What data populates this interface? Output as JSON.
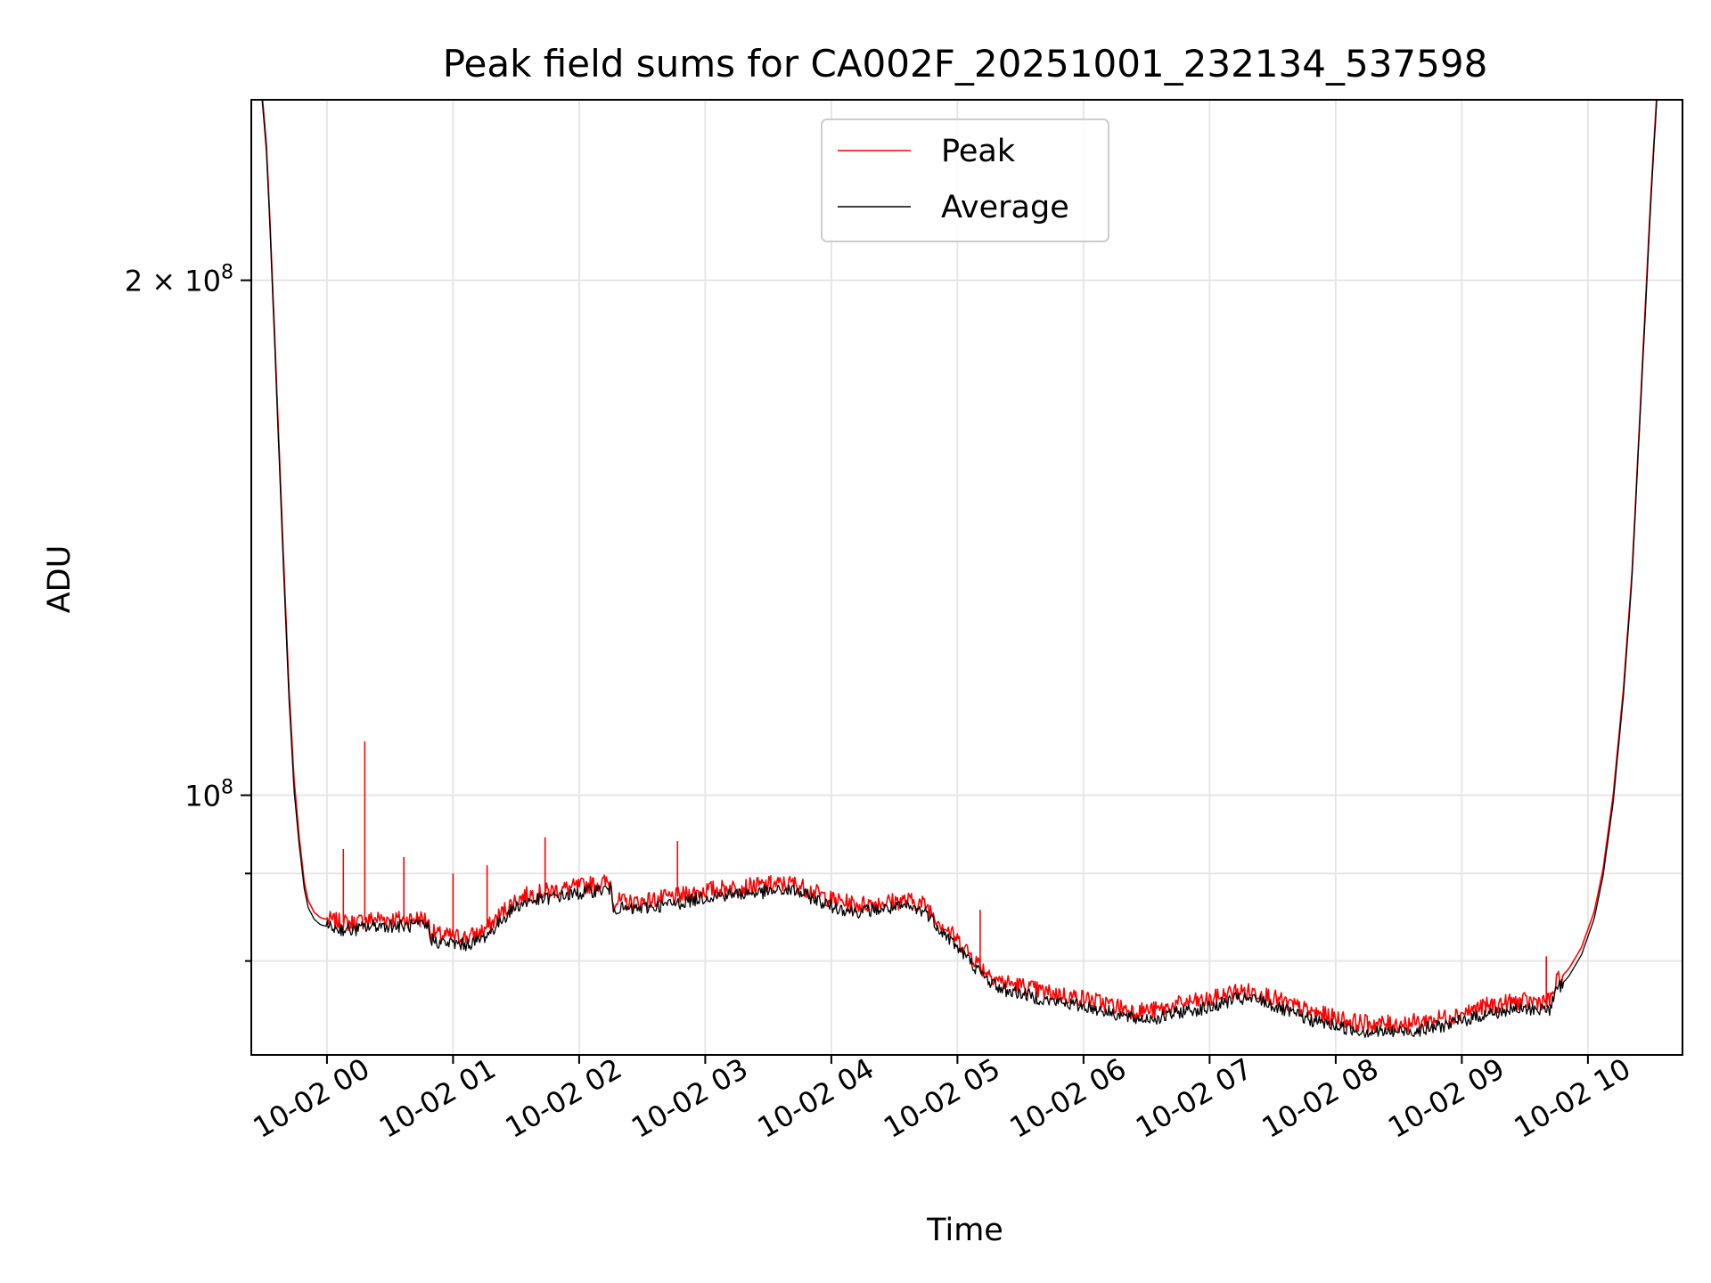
{
  "chart_data": {
    "type": "line",
    "title": "Peak field sums for CA002F_20251001_232134_537598",
    "xlabel": "Time",
    "ylabel": "ADU",
    "yscale": "log",
    "x_unit": "hours relative to 10-02 00:00",
    "xlim": [
      -0.6,
      10.75
    ],
    "ylim": [
      70500000,
      255000000
    ],
    "x_ticks": [
      {
        "value": 0,
        "label": "10-02 00"
      },
      {
        "value": 1,
        "label": "10-02 01"
      },
      {
        "value": 2,
        "label": "10-02 02"
      },
      {
        "value": 3,
        "label": "10-02 03"
      },
      {
        "value": 4,
        "label": "10-02 04"
      },
      {
        "value": 5,
        "label": "10-02 05"
      },
      {
        "value": 6,
        "label": "10-02 06"
      },
      {
        "value": 7,
        "label": "10-02 07"
      },
      {
        "value": 8,
        "label": "10-02 08"
      },
      {
        "value": 9,
        "label": "10-02 09"
      },
      {
        "value": 10,
        "label": "10-02 10"
      }
    ],
    "y_major_ticks": [
      {
        "value": 100000000,
        "base": "10",
        "exp": "8",
        "coef": ""
      },
      {
        "value": 200000000,
        "base": "10",
        "exp": "8",
        "coef": "2 × "
      }
    ],
    "y_minor_ticks": [
      80000000,
      90000000
    ],
    "grid": true,
    "legend_position": "upper center",
    "series": [
      {
        "name": "Peak",
        "color": "#ff0000",
        "x": [
          -0.52,
          -0.48,
          -0.45,
          -0.42,
          -0.38,
          -0.34,
          -0.3,
          -0.26,
          -0.22,
          -0.18,
          -0.15,
          -0.1,
          -0.05,
          0.0,
          0.1,
          0.2,
          0.3,
          0.4,
          0.5,
          0.6,
          0.7,
          0.75,
          0.8,
          0.82,
          0.9,
          1.0,
          1.1,
          1.2,
          1.3,
          1.4,
          1.5,
          1.6,
          1.7,
          1.8,
          1.9,
          2.0,
          2.1,
          2.2,
          2.25,
          2.27,
          2.4,
          2.6,
          2.8,
          3.0,
          3.2,
          3.4,
          3.6,
          3.7,
          3.8,
          4.0,
          4.2,
          4.4,
          4.6,
          4.75,
          4.85,
          5.0,
          5.1,
          5.2,
          5.35,
          5.5,
          5.7,
          5.9,
          6.0,
          6.2,
          6.4,
          6.6,
          6.8,
          7.0,
          7.2,
          7.4,
          7.6,
          7.8,
          8.0,
          8.2,
          8.4,
          8.6,
          8.8,
          9.0,
          9.2,
          9.4,
          9.6,
          9.7,
          9.75,
          9.85,
          9.95,
          10.05,
          10.12,
          10.2,
          10.28,
          10.35,
          10.4,
          10.45,
          10.5,
          10.55
        ],
        "y": [
          260000000,
          240000000,
          215000000,
          190000000,
          160000000,
          135000000,
          115000000,
          102000000,
          94500000,
          89000000,
          86800000,
          85400000,
          84800000,
          84600000,
          84300000,
          84200000,
          84500000,
          84700000,
          84700000,
          84600000,
          84700000,
          84700000,
          84600000,
          83200000,
          82800000,
          82700000,
          82600000,
          83000000,
          84000000,
          85600000,
          86900000,
          87500000,
          87700000,
          88000000,
          88200000,
          88400000,
          88700000,
          88900000,
          88900000,
          86800000,
          86500000,
          86900000,
          87300000,
          88000000,
          88300000,
          88500000,
          88700000,
          88800000,
          88200000,
          86900000,
          86300000,
          86600000,
          86800000,
          86300000,
          84500000,
          82300000,
          80800000,
          79200000,
          77800000,
          77400000,
          76700000,
          76300000,
          76100000,
          75500000,
          74800000,
          74900000,
          75600000,
          75900000,
          76800000,
          76700000,
          75600000,
          74700000,
          74100000,
          73600000,
          73500000,
          73600000,
          74000000,
          74600000,
          75300000,
          75700000,
          75800000,
          75800000,
          77700000,
          79200000,
          81500000,
          85500000,
          90500000,
          100000000,
          115000000,
          135000000,
          160000000,
          190000000,
          225000000,
          260000000
        ]
      },
      {
        "name": "Average",
        "color": "#000000",
        "x": [
          -0.52,
          -0.48,
          -0.45,
          -0.42,
          -0.38,
          -0.34,
          -0.3,
          -0.26,
          -0.22,
          -0.18,
          -0.15,
          -0.1,
          -0.05,
          0.0,
          0.1,
          0.2,
          0.3,
          0.4,
          0.5,
          0.6,
          0.7,
          0.75,
          0.8,
          0.82,
          0.9,
          1.0,
          1.1,
          1.2,
          1.3,
          1.4,
          1.5,
          1.6,
          1.7,
          1.8,
          1.9,
          2.0,
          2.1,
          2.2,
          2.25,
          2.27,
          2.4,
          2.6,
          2.8,
          3.0,
          3.2,
          3.4,
          3.6,
          3.7,
          3.8,
          4.0,
          4.2,
          4.4,
          4.6,
          4.75,
          4.85,
          5.0,
          5.1,
          5.2,
          5.35,
          5.5,
          5.7,
          5.9,
          6.0,
          6.2,
          6.4,
          6.6,
          6.8,
          7.0,
          7.2,
          7.4,
          7.6,
          7.8,
          8.0,
          8.2,
          8.4,
          8.6,
          8.8,
          9.0,
          9.2,
          9.4,
          9.6,
          9.7,
          9.75,
          9.85,
          9.95,
          10.05,
          10.12,
          10.2,
          10.28,
          10.35,
          10.4,
          10.45,
          10.5,
          10.55
        ],
        "y": [
          258000000,
          238000000,
          213000000,
          188000000,
          158000000,
          133000000,
          113500000,
          100500000,
          93500000,
          88200000,
          86000000,
          84600000,
          84000000,
          83800000,
          83500000,
          83400000,
          83700000,
          83900000,
          83900000,
          83800000,
          83900000,
          83900000,
          83800000,
          82400000,
          82000000,
          81900000,
          81800000,
          82200000,
          83200000,
          84800000,
          86100000,
          86700000,
          86900000,
          87200000,
          87400000,
          87600000,
          87900000,
          88100000,
          88100000,
          86000000,
          85700000,
          86100000,
          86500000,
          87200000,
          87500000,
          87700000,
          87900000,
          88000000,
          87400000,
          86100000,
          85500000,
          85800000,
          86000000,
          85500000,
          83700000,
          81500000,
          80000000,
          78400000,
          77000000,
          76600000,
          75900000,
          75500000,
          75300000,
          74700000,
          74000000,
          74100000,
          74800000,
          75100000,
          76000000,
          75900000,
          74800000,
          73900000,
          73300000,
          72800000,
          72700000,
          72800000,
          73200000,
          73800000,
          74500000,
          74900000,
          75000000,
          75000000,
          76900000,
          78400000,
          80700000,
          84700000,
          89700000,
          99000000,
          114000000,
          134000000,
          159000000,
          188000000,
          223000000,
          258000000
        ]
      }
    ],
    "spikes": [
      {
        "x": 0.13,
        "y": 93000000
      },
      {
        "x": 0.3,
        "y": 107500000
      },
      {
        "x": 0.61,
        "y": 92000000
      },
      {
        "x": 1.0,
        "y": 90000000
      },
      {
        "x": 1.27,
        "y": 91000000
      },
      {
        "x": 1.73,
        "y": 94500000
      },
      {
        "x": 2.78,
        "y": 94000000
      },
      {
        "x": 3.52,
        "y": 89800000
      },
      {
        "x": 5.18,
        "y": 85700000
      },
      {
        "x": 9.67,
        "y": 80500000
      }
    ]
  },
  "legend": {
    "peak_label": "Peak",
    "average_label": "Average"
  }
}
